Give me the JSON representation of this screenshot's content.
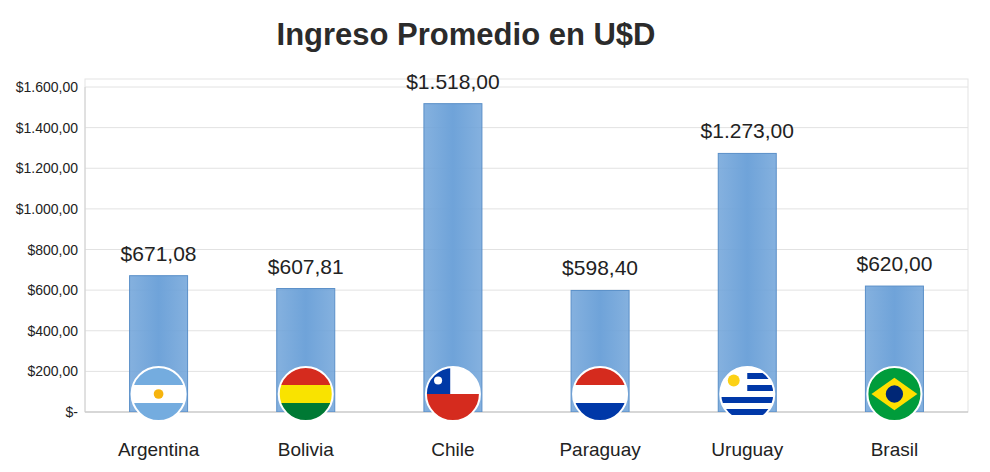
{
  "chart_data": {
    "type": "bar",
    "title": "Ingreso Promedio en U$D",
    "categories": [
      "Argentina",
      "Bolivia",
      "Chile",
      "Paraguay",
      "Uruguay",
      "Brasil"
    ],
    "values": [
      671.08,
      607.81,
      1518,
      598.4,
      1273,
      620
    ],
    "value_labels": [
      "$671,08",
      "$607,81",
      "$1.518,00",
      "$598,40",
      "$1.273,00",
      "$620,00"
    ],
    "color": "#6fa3d9",
    "ylim": [
      0,
      1600
    ],
    "yticks": [
      {
        "value": 0,
        "label": "$-"
      },
      {
        "value": 200,
        "label": "$200,00"
      },
      {
        "value": 400,
        "label": "$400,00"
      },
      {
        "value": 600,
        "label": "$600,00"
      },
      {
        "value": 800,
        "label": "$800,00"
      },
      {
        "value": 1000,
        "label": "$1.000,00"
      },
      {
        "value": 1200,
        "label": "$1.200,00"
      },
      {
        "value": 1400,
        "label": "$1.400,00"
      },
      {
        "value": 1600,
        "label": "$1.600,00"
      }
    ],
    "grid": true,
    "data_labels": true
  }
}
